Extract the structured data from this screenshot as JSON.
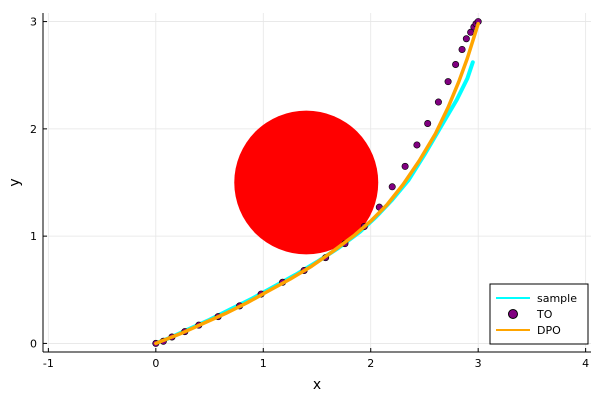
{
  "chart_data": {
    "type": "line",
    "title": "",
    "xlabel": "x",
    "ylabel": "y",
    "xlim": [
      -1.05,
      4.05
    ],
    "ylim": [
      -0.08,
      3.08
    ],
    "xticks": [
      -1,
      0,
      1,
      2,
      3,
      4
    ],
    "xtick_labels": [
      "-1",
      "0",
      "1",
      "2",
      "3",
      "4"
    ],
    "yticks": [
      0,
      1,
      2,
      3
    ],
    "ytick_labels": [
      "0",
      "1",
      "2",
      "3"
    ],
    "grid": true,
    "legend_position": "bottom-right",
    "obstacle": {
      "shape": "circle",
      "center": [
        1.4,
        1.5
      ],
      "radius": 0.67,
      "color": "#ff0000"
    },
    "series": [
      {
        "name": "sample",
        "kind": "line",
        "color": "#00ffff",
        "x": [
          0,
          0.15,
          0.3,
          0.5,
          0.7,
          0.9,
          1.1,
          1.3,
          1.5,
          1.7,
          1.9,
          2.05,
          2.2,
          2.35,
          2.5,
          2.6,
          2.7,
          2.8,
          2.9,
          2.95
        ],
        "y": [
          0,
          0.06,
          0.13,
          0.22,
          0.32,
          0.42,
          0.53,
          0.64,
          0.76,
          0.89,
          1.04,
          1.18,
          1.34,
          1.52,
          1.76,
          1.93,
          2.1,
          2.27,
          2.47,
          2.62
        ]
      },
      {
        "name": "TO",
        "kind": "scatter",
        "color": "#800080",
        "x": [
          0,
          0.07,
          0.15,
          0.27,
          0.4,
          0.58,
          0.78,
          0.98,
          1.18,
          1.38,
          1.58,
          1.76,
          1.94,
          2.08,
          2.2,
          2.32,
          2.43,
          2.53,
          2.63,
          2.72,
          2.79,
          2.85,
          2.89,
          2.93,
          2.96,
          2.98,
          3.0
        ],
        "y": [
          0,
          0.02,
          0.06,
          0.11,
          0.17,
          0.25,
          0.35,
          0.46,
          0.57,
          0.68,
          0.8,
          0.93,
          1.09,
          1.27,
          1.46,
          1.65,
          1.85,
          2.05,
          2.25,
          2.44,
          2.6,
          2.74,
          2.84,
          2.9,
          2.95,
          2.98,
          3.0
        ]
      },
      {
        "name": "DPO",
        "kind": "line",
        "color": "#ffa500",
        "x": [
          0,
          0.1,
          0.25,
          0.45,
          0.65,
          0.85,
          1.05,
          1.25,
          1.45,
          1.65,
          1.85,
          2.0,
          2.15,
          2.3,
          2.45,
          2.6,
          2.72,
          2.82,
          2.9,
          2.95,
          3.0
        ],
        "y": [
          0,
          0.04,
          0.1,
          0.19,
          0.28,
          0.38,
          0.49,
          0.6,
          0.72,
          0.86,
          1.01,
          1.14,
          1.29,
          1.48,
          1.7,
          1.95,
          2.2,
          2.44,
          2.66,
          2.82,
          2.98
        ]
      }
    ]
  }
}
